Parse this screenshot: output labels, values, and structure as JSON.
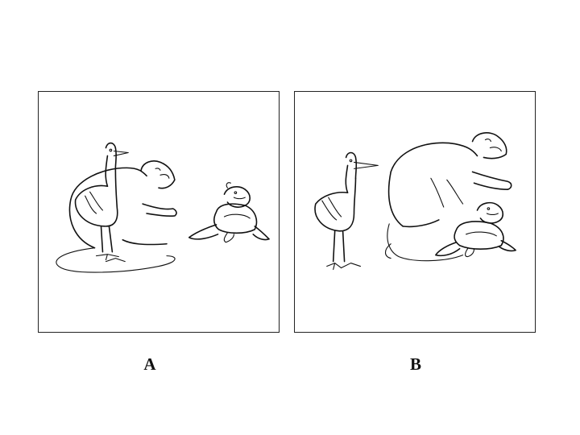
{
  "panels": [
    {
      "id": "A",
      "label": "A",
      "scene_icons": [
        "stork-icon",
        "monkey-icon",
        "turtle-icon"
      ]
    },
    {
      "id": "B",
      "label": "B",
      "scene_icons": [
        "stork-icon",
        "monkey-icon",
        "turtle-icon"
      ]
    }
  ]
}
